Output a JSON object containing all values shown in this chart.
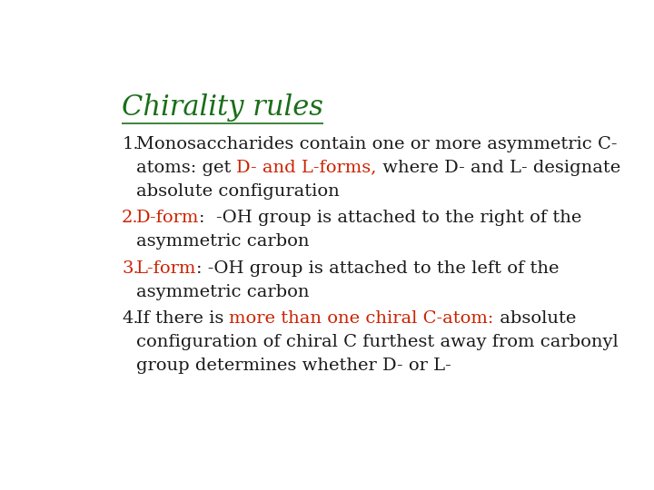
{
  "background_color": "#ffffff",
  "title": "Chirality rules",
  "title_color": "#1a6e1a",
  "title_fontsize": 22,
  "body_fontsize": 14,
  "red_color": "#cc2200",
  "dark_color": "#1a1a1a",
  "items": [
    {
      "number": "1.",
      "number_color": "#1a1a1a",
      "lines": [
        [
          {
            "text": "Monosaccharides contain one or more asymmetric C-",
            "color": "#1a1a1a"
          }
        ],
        [
          {
            "text": "atoms: get ",
            "color": "#1a1a1a"
          },
          {
            "text": "D- and L-forms,",
            "color": "#cc2200"
          },
          {
            "text": " where D- and L- designate",
            "color": "#1a1a1a"
          }
        ],
        [
          {
            "text": "absolute configuration",
            "color": "#1a1a1a"
          }
        ]
      ]
    },
    {
      "number": "2.",
      "number_color": "#cc2200",
      "lines": [
        [
          {
            "text": "D-form",
            "color": "#cc2200"
          },
          {
            "text": ":  -OH group is attached to the right of the",
            "color": "#1a1a1a"
          }
        ],
        [
          {
            "text": "asymmetric carbon",
            "color": "#1a1a1a"
          }
        ]
      ]
    },
    {
      "number": "3.",
      "number_color": "#cc2200",
      "lines": [
        [
          {
            "text": "L-form",
            "color": "#cc2200"
          },
          {
            "text": ": -OH group is attached to the left of the",
            "color": "#1a1a1a"
          }
        ],
        [
          {
            "text": "asymmetric carbon",
            "color": "#1a1a1a"
          }
        ]
      ]
    },
    {
      "number": "4.",
      "number_color": "#1a1a1a",
      "lines": [
        [
          {
            "text": "If there is ",
            "color": "#1a1a1a"
          },
          {
            "text": "more than one chiral C-atom:",
            "color": "#cc2200"
          },
          {
            "text": " absolute",
            "color": "#1a1a1a"
          }
        ],
        [
          {
            "text": "configuration of chiral C furthest away from carbonyl",
            "color": "#1a1a1a"
          }
        ],
        [
          {
            "text": "group determines whether D- or L-",
            "color": "#1a1a1a"
          }
        ]
      ]
    }
  ]
}
